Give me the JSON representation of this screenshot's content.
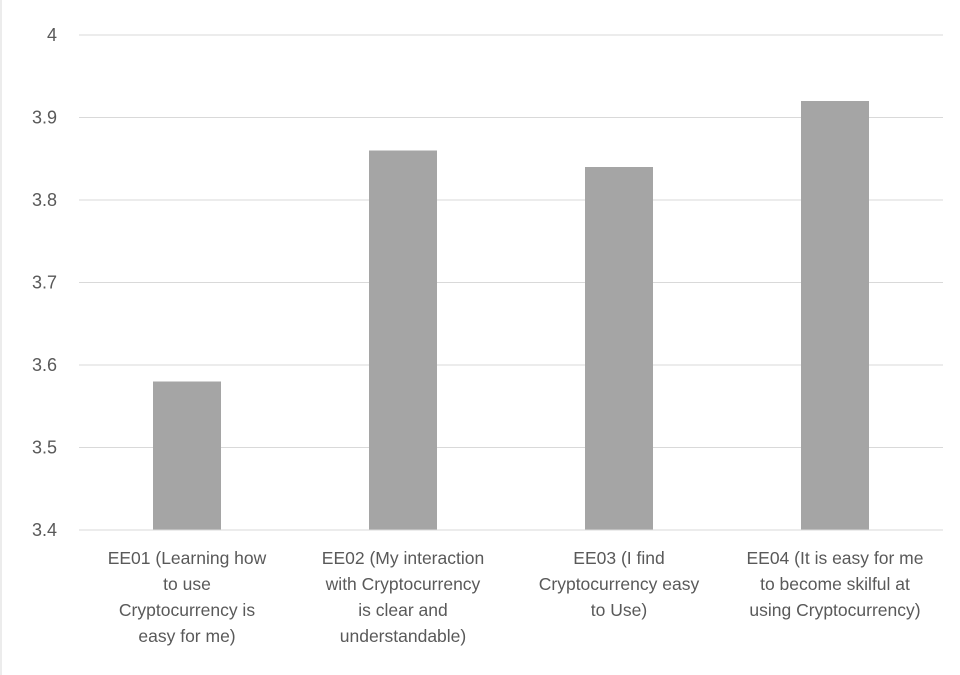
{
  "chart_data": {
    "type": "bar",
    "title": "",
    "xlabel": "",
    "ylabel": "",
    "categories": [
      [
        "EE01 (Learning how",
        "to use",
        "Cryptocurrency is",
        "easy for me)"
      ],
      [
        "EE02 (My interaction",
        "with Cryptocurrency",
        "is clear and",
        "understandable)"
      ],
      [
        "EE03 (I find",
        "Cryptocurrency easy",
        "to Use)"
      ],
      [
        "EE04 (It is easy for me",
        "to become skilful at",
        "using Cryptocurrency)"
      ]
    ],
    "values": [
      3.58,
      3.86,
      3.84,
      3.92
    ],
    "ylim": [
      3.4,
      4
    ],
    "yticks": [
      "3.4",
      "3.5",
      "3.6",
      "3.7",
      "3.8",
      "3.9",
      "4"
    ],
    "grid": true,
    "bar_color": "#a5a5a5",
    "grid_color": "#d9d9d9",
    "text_color": "#595959"
  }
}
